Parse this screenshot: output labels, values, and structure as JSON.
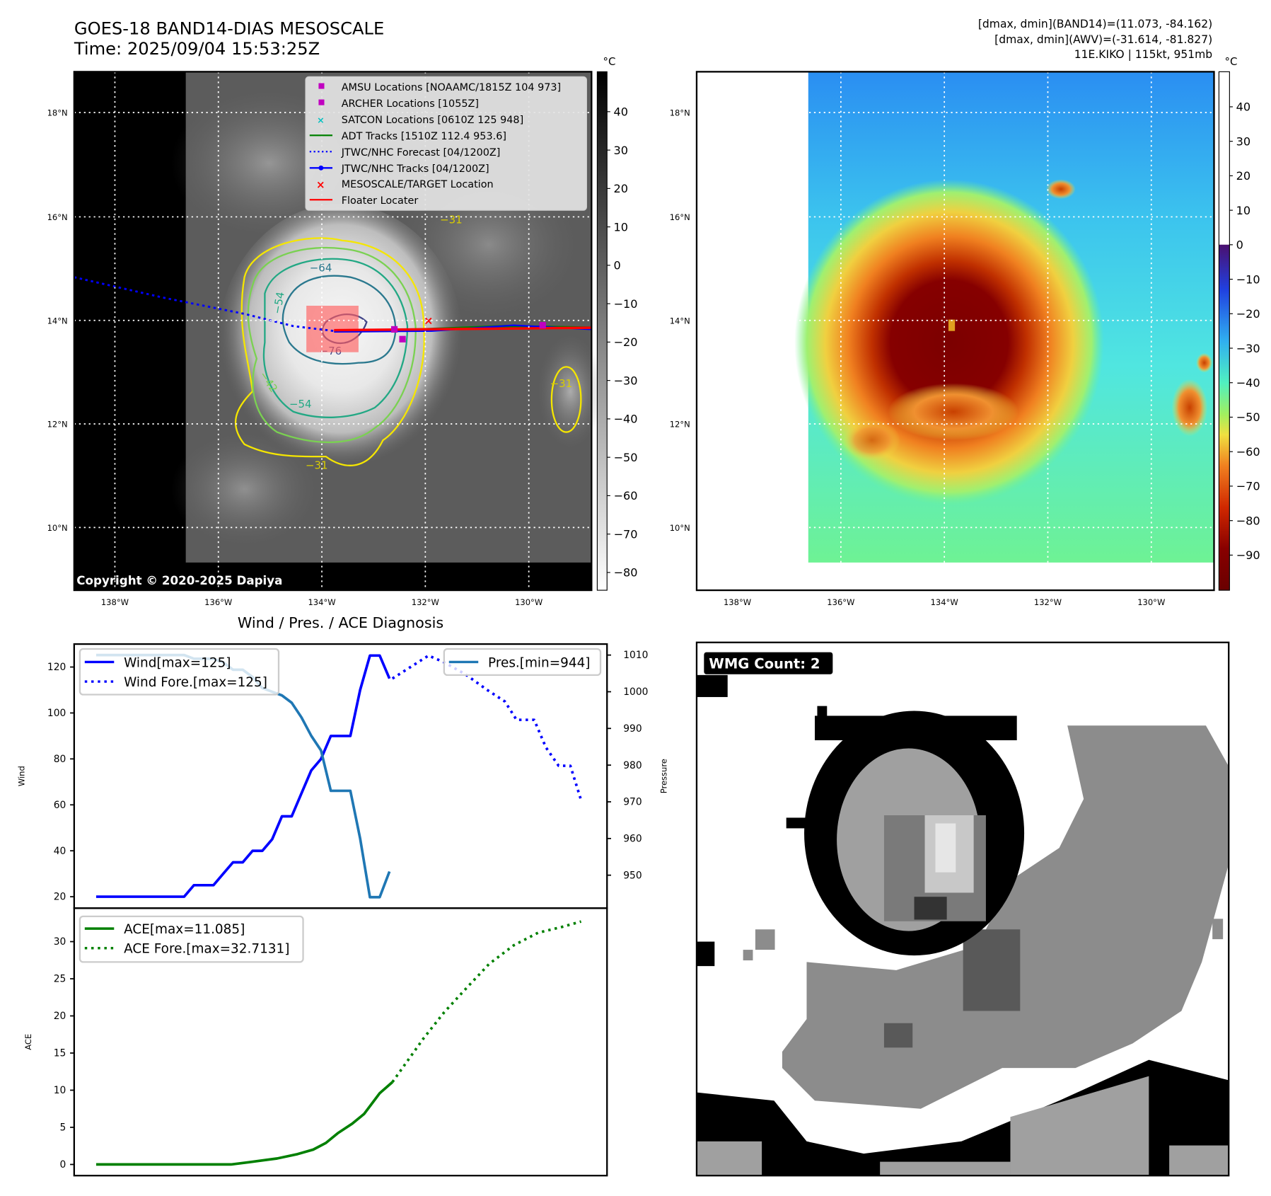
{
  "header": {
    "title_line1": "GOES-18 BAND14-DIAS MESOSCALE",
    "title_line2": "Time: 2025/09/04 15:53:25Z",
    "info_line1": "[dmax, dmin](BAND14)=(11.073, -84.162)",
    "info_line2": "[dmax, dmin](AWV)=(-31.614, -81.827)",
    "info_line3": "11E.KIKO | 115kt, 951mb"
  },
  "ir_map": {
    "unit": "°C",
    "lat_labels": [
      "18°N",
      "16°N",
      "14°N",
      "12°N",
      "10°N"
    ],
    "lon_labels": [
      "138°W",
      "136°W",
      "134°W",
      "132°W",
      "130°W"
    ],
    "colorbar_ticks": [
      "40",
      "30",
      "20",
      "10",
      "0",
      "−10",
      "−20",
      "−30",
      "−40",
      "−50",
      "−60",
      "−70",
      "−80"
    ],
    "contour_labels": [
      "−64",
      "−54",
      "−76",
      "−42",
      "−54",
      "−31",
      "−31",
      "−31"
    ],
    "legend": [
      {
        "label": "AMSU Locations [NOAAMC/1815Z 104 973]",
        "color": "#c000c0"
      },
      {
        "label": "ARCHER Locations [1055Z]",
        "color": "#c000c0"
      },
      {
        "label": "SATCON Locations [0610Z 125 948]",
        "color": "#00c0c0"
      },
      {
        "label": "ADT Tracks [1510Z 112.4 953.6]",
        "color": "#008000"
      },
      {
        "label": "JTWC/NHC Forecast [04/1200Z]",
        "color": "#0000ff"
      },
      {
        "label": "JTWC/NHC Tracks [04/1200Z]",
        "color": "#0000ff"
      },
      {
        "label": "MESOSCALE/TARGET Location",
        "color": "#ff0000"
      },
      {
        "label": "Floater Locater",
        "color": "#ff0000"
      }
    ],
    "copyright": "Copyright © 2020-2025 Dapiya"
  },
  "awv_map": {
    "unit": "°C",
    "lat_labels": [
      "18°N",
      "16°N",
      "14°N",
      "12°N",
      "10°N"
    ],
    "lon_labels": [
      "138°W",
      "136°W",
      "134°W",
      "132°W",
      "130°W"
    ],
    "colorbar_ticks": [
      "40",
      "30",
      "20",
      "10",
      "0",
      "−10",
      "−20",
      "−30",
      "−40",
      "−50",
      "−60",
      "−70",
      "−80",
      "−90"
    ]
  },
  "wmg": {
    "label": "WMG Count: 2"
  },
  "chart_data": [
    {
      "type": "line",
      "title": "Wind / Pres. / ACE Diagnosis",
      "xlim": [
        -2.25,
        52.25
      ],
      "ylabel": "Wind",
      "ylim": [
        15,
        130
      ],
      "yticks": [
        20,
        40,
        60,
        80,
        100,
        120
      ],
      "y2label": "Pressure",
      "y2lim": [
        941,
        1013
      ],
      "y2ticks": [
        950,
        960,
        970,
        980,
        990,
        1000,
        1010
      ],
      "series": [
        {
          "name": "Wind[max=125]",
          "axis": "left",
          "style": "solid",
          "color": "#0000ff",
          "x": [
            0,
            1,
            2,
            3,
            4,
            5,
            6,
            7,
            8,
            9,
            10,
            11,
            12,
            13,
            14,
            15,
            16,
            17,
            18,
            19,
            20,
            21,
            22,
            23,
            24,
            25,
            26,
            27,
            28,
            29,
            30
          ],
          "y": [
            20,
            20,
            20,
            20,
            20,
            20,
            20,
            20,
            20,
            20,
            25,
            25,
            25,
            30,
            35,
            35,
            40,
            40,
            45,
            55,
            55,
            65,
            75,
            80,
            90,
            90,
            90,
            110,
            125,
            125,
            115
          ]
        },
        {
          "name": "Wind Fore.[max=125]",
          "axis": "left",
          "style": "dotted",
          "color": "#0000ff",
          "x": [
            30.3,
            34,
            35.6,
            37.7,
            40,
            41.8,
            43,
            44.8,
            46,
            47.3,
            48.5,
            49.6
          ],
          "y": [
            115,
            125,
            122,
            117,
            110,
            105,
            97,
            97,
            85,
            77,
            77,
            62
          ]
        },
        {
          "name": "Pres.[min=944]",
          "axis": "right",
          "style": "solid",
          "color": "#1f77b4",
          "x": [
            0,
            1,
            2,
            3,
            4,
            5,
            6,
            7,
            8,
            9,
            10,
            11,
            12,
            13,
            14,
            15,
            16,
            17,
            18,
            19,
            20,
            21,
            22,
            23,
            24,
            25,
            26,
            27,
            28,
            29,
            30
          ],
          "y": [
            1010,
            1010,
            1010,
            1010,
            1010,
            1010,
            1010,
            1010,
            1010,
            1010,
            1009,
            1009,
            1009,
            1008,
            1006,
            1006,
            1004,
            1001,
            1000,
            999,
            997,
            993,
            988,
            984,
            973,
            973,
            973,
            960,
            944,
            944,
            951
          ]
        }
      ]
    },
    {
      "type": "line",
      "xlim": [
        -2.25,
        52.25
      ],
      "ylabel": "ACE",
      "ylim": [
        -1.5,
        34.5
      ],
      "yticks": [
        0,
        5,
        10,
        15,
        20,
        25,
        30
      ],
      "series": [
        {
          "name": "ACE[max=11.085]",
          "style": "solid",
          "color": "#008000",
          "x": [
            0,
            5,
            10,
            13.8,
            15.6,
            18.5,
            20.6,
            22.2,
            23.5,
            24.7,
            26.2,
            27.4,
            29,
            30.3
          ],
          "y": [
            0,
            0,
            0,
            0,
            0.3,
            0.8,
            1.4,
            2.0,
            2.9,
            4.2,
            5.5,
            6.8,
            9.6,
            11.085
          ]
        },
        {
          "name": "ACE Fore.[max=32.7131]",
          "style": "dotted",
          "color": "#008000",
          "x": [
            30.3,
            33.5,
            35.6,
            37.7,
            40.2,
            42.7,
            45.2,
            47.7,
            49.6
          ],
          "y": [
            11.085,
            17,
            20.5,
            23.5,
            27,
            29.5,
            31.2,
            32,
            32.7131
          ]
        }
      ]
    }
  ]
}
